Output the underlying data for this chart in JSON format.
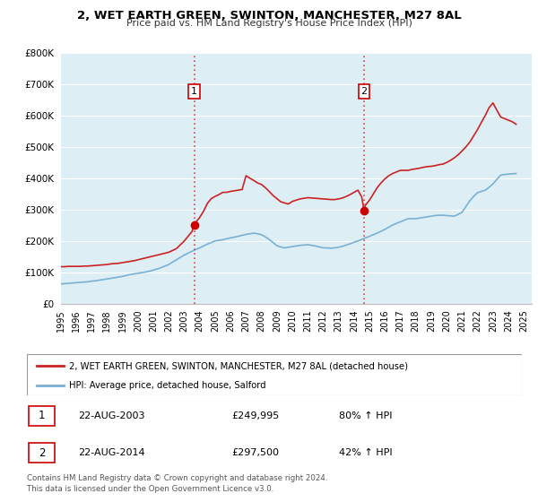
{
  "title": "2, WET EARTH GREEN, SWINTON, MANCHESTER, M27 8AL",
  "subtitle": "Price paid vs. HM Land Registry's House Price Index (HPI)",
  "background_color": "#ffffff",
  "plot_bg_color": "#ddeef5",
  "grid_color": "#ffffff",
  "ylim": [
    0,
    800000
  ],
  "yticks": [
    0,
    100000,
    200000,
    300000,
    400000,
    500000,
    600000,
    700000,
    800000
  ],
  "ytick_labels": [
    "£0",
    "£100K",
    "£200K",
    "£300K",
    "£400K",
    "£500K",
    "£600K",
    "£700K",
    "£800K"
  ],
  "xlim_start": 1995.0,
  "xlim_end": 2025.5,
  "xticks": [
    1995,
    1996,
    1997,
    1998,
    1999,
    2000,
    2001,
    2002,
    2003,
    2004,
    2005,
    2006,
    2007,
    2008,
    2009,
    2010,
    2011,
    2012,
    2013,
    2014,
    2015,
    2016,
    2017,
    2018,
    2019,
    2020,
    2021,
    2022,
    2023,
    2024,
    2025
  ],
  "sale1_x": 2003.64,
  "sale1_y": 249995,
  "sale1_label": "1",
  "sale2_x": 2014.64,
  "sale2_y": 297500,
  "sale2_label": "2",
  "vline_color": "#dd4444",
  "dot_color": "#cc0000",
  "red_line_color": "#cc2222",
  "blue_line_color": "#7ab0d4",
  "legend_line1": "2, WET EARTH GREEN, SWINTON, MANCHESTER, M27 8AL (detached house)",
  "legend_line2": "HPI: Average price, detached house, Salford",
  "table_row1_num": "1",
  "table_row1_date": "22-AUG-2003",
  "table_row1_price": "£249,995",
  "table_row1_hpi": "80% ↑ HPI",
  "table_row2_num": "2",
  "table_row2_date": "22-AUG-2014",
  "table_row2_price": "£297,500",
  "table_row2_hpi": "42% ↑ HPI",
  "footer": "Contains HM Land Registry data © Crown copyright and database right 2024.\nThis data is licensed under the Open Government Licence v3.0.",
  "hpi_data": {
    "years": [
      1995.0,
      1995.25,
      1995.5,
      1995.75,
      1996.0,
      1996.25,
      1996.5,
      1996.75,
      1997.0,
      1997.25,
      1997.5,
      1997.75,
      1998.0,
      1998.25,
      1998.5,
      1998.75,
      1999.0,
      1999.25,
      1999.5,
      1999.75,
      2000.0,
      2000.25,
      2000.5,
      2000.75,
      2001.0,
      2001.25,
      2001.5,
      2001.75,
      2002.0,
      2002.25,
      2002.5,
      2002.75,
      2003.0,
      2003.25,
      2003.5,
      2003.75,
      2004.0,
      2004.25,
      2004.5,
      2004.75,
      2005.0,
      2005.25,
      2005.5,
      2005.75,
      2006.0,
      2006.25,
      2006.5,
      2006.75,
      2007.0,
      2007.25,
      2007.5,
      2007.75,
      2008.0,
      2008.25,
      2008.5,
      2008.75,
      2009.0,
      2009.25,
      2009.5,
      2009.75,
      2010.0,
      2010.25,
      2010.5,
      2010.75,
      2011.0,
      2011.25,
      2011.5,
      2011.75,
      2012.0,
      2012.25,
      2012.5,
      2012.75,
      2013.0,
      2013.25,
      2013.5,
      2013.75,
      2014.0,
      2014.25,
      2014.5,
      2014.75,
      2015.0,
      2015.25,
      2015.5,
      2015.75,
      2016.0,
      2016.25,
      2016.5,
      2016.75,
      2017.0,
      2017.25,
      2017.5,
      2017.75,
      2018.0,
      2018.25,
      2018.5,
      2018.75,
      2019.0,
      2019.25,
      2019.5,
      2019.75,
      2020.0,
      2020.25,
      2020.5,
      2020.75,
      2021.0,
      2021.25,
      2021.5,
      2021.75,
      2022.0,
      2022.25,
      2022.5,
      2022.75,
      2023.0,
      2023.25,
      2023.5,
      2023.75,
      2024.0,
      2024.25,
      2024.5
    ],
    "values": [
      63000,
      64000,
      65000,
      66000,
      67000,
      68000,
      69000,
      70000,
      72000,
      73000,
      75000,
      77000,
      79000,
      81000,
      83000,
      85000,
      87000,
      90000,
      93000,
      95000,
      97000,
      99000,
      101000,
      104000,
      107000,
      111000,
      115000,
      120000,
      125000,
      133000,
      140000,
      148000,
      155000,
      161000,
      167000,
      173000,
      178000,
      184000,
      190000,
      195000,
      200000,
      202000,
      204000,
      207000,
      210000,
      212000,
      215000,
      218000,
      221000,
      223000,
      225000,
      223000,
      220000,
      213000,
      205000,
      195000,
      185000,
      181000,
      178000,
      180000,
      182000,
      184000,
      186000,
      187000,
      188000,
      186000,
      184000,
      181000,
      178000,
      178000,
      177000,
      178000,
      180000,
      183000,
      187000,
      191000,
      196000,
      200000,
      205000,
      210000,
      215000,
      220000,
      225000,
      231000,
      237000,
      244000,
      251000,
      256000,
      261000,
      266000,
      271000,
      271000,
      271000,
      273000,
      275000,
      277000,
      279000,
      281000,
      282000,
      282000,
      281000,
      280000,
      279000,
      285000,
      291000,
      310000,
      328000,
      342000,
      354000,
      358000,
      362000,
      371000,
      382000,
      396000,
      410000,
      412000,
      413000,
      414000,
      415000
    ]
  },
  "price_data": {
    "years": [
      1995.0,
      1995.25,
      1995.5,
      1995.75,
      1996.0,
      1996.25,
      1996.5,
      1996.75,
      1997.0,
      1997.25,
      1997.5,
      1997.75,
      1998.0,
      1998.25,
      1998.5,
      1998.75,
      1999.0,
      1999.25,
      1999.5,
      1999.75,
      2000.0,
      2000.25,
      2000.5,
      2000.75,
      2001.0,
      2001.25,
      2001.5,
      2001.75,
      2002.0,
      2002.25,
      2002.5,
      2002.75,
      2003.0,
      2003.25,
      2003.5,
      2003.64,
      2003.75,
      2004.0,
      2004.25,
      2004.5,
      2004.75,
      2005.0,
      2005.25,
      2005.5,
      2005.75,
      2006.0,
      2006.25,
      2006.5,
      2006.75,
      2007.0,
      2007.25,
      2007.5,
      2007.75,
      2008.0,
      2008.25,
      2008.5,
      2008.75,
      2009.0,
      2009.25,
      2009.5,
      2009.75,
      2010.0,
      2010.25,
      2010.5,
      2010.75,
      2011.0,
      2011.25,
      2011.5,
      2011.75,
      2012.0,
      2012.25,
      2012.5,
      2012.75,
      2013.0,
      2013.25,
      2013.5,
      2013.75,
      2014.0,
      2014.25,
      2014.5,
      2014.64,
      2014.75,
      2015.0,
      2015.25,
      2015.5,
      2015.75,
      2016.0,
      2016.25,
      2016.5,
      2016.75,
      2017.0,
      2017.25,
      2017.5,
      2017.75,
      2018.0,
      2018.25,
      2018.5,
      2018.75,
      2019.0,
      2019.25,
      2019.5,
      2019.75,
      2020.0,
      2020.25,
      2020.5,
      2020.75,
      2021.0,
      2021.25,
      2021.5,
      2021.75,
      2022.0,
      2022.25,
      2022.5,
      2022.75,
      2023.0,
      2023.25,
      2023.5,
      2023.75,
      2024.0,
      2024.25,
      2024.5
    ],
    "values": [
      118000,
      118000,
      119000,
      119000,
      119000,
      119000,
      120000,
      120000,
      121000,
      122000,
      123000,
      124000,
      125000,
      127000,
      128000,
      129000,
      131000,
      133000,
      135000,
      137000,
      140000,
      143000,
      146000,
      149000,
      152000,
      155000,
      158000,
      161000,
      164000,
      170000,
      176000,
      188000,
      200000,
      215000,
      230000,
      249995,
      260000,
      275000,
      295000,
      320000,
      335000,
      342000,
      348000,
      355000,
      355000,
      358000,
      360000,
      362000,
      364000,
      408000,
      400000,
      393000,
      385000,
      380000,
      370000,
      358000,
      345000,
      335000,
      325000,
      321000,
      318000,
      326000,
      330000,
      334000,
      336000,
      338000,
      337000,
      336000,
      335000,
      334000,
      333000,
      332000,
      332000,
      334000,
      337000,
      342000,
      348000,
      355000,
      362000,
      340000,
      297500,
      315000,
      330000,
      350000,
      370000,
      385000,
      398000,
      408000,
      415000,
      420000,
      425000,
      425000,
      425000,
      428000,
      430000,
      432000,
      435000,
      437000,
      438000,
      440000,
      443000,
      445000,
      450000,
      457000,
      465000,
      475000,
      487000,
      500000,
      515000,
      535000,
      555000,
      578000,
      600000,
      625000,
      640000,
      617000,
      595000,
      590000,
      585000,
      580000,
      572000
    ]
  }
}
